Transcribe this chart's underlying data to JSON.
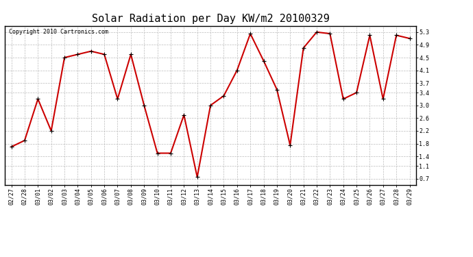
{
  "title": "Solar Radiation per Day KW/m2 20100329",
  "copyright_text": "Copyright 2010 Cartronics.com",
  "line_color": "#cc0000",
  "background_color": "#ffffff",
  "plot_bg_color": "#ffffff",
  "grid_color": "#bbbbbb",
  "dates": [
    "02/27",
    "02/28",
    "03/01",
    "03/02",
    "03/03",
    "03/04",
    "03/05",
    "03/06",
    "03/07",
    "03/08",
    "03/09",
    "03/10",
    "03/11",
    "03/12",
    "03/13",
    "03/14",
    "03/15",
    "03/16",
    "03/17",
    "03/18",
    "03/19",
    "03/20",
    "03/21",
    "03/22",
    "03/23",
    "03/24",
    "03/25",
    "03/26",
    "03/27",
    "03/28",
    "03/29"
  ],
  "values": [
    1.7,
    1.9,
    3.2,
    2.2,
    4.5,
    4.6,
    4.7,
    4.6,
    3.2,
    4.6,
    3.0,
    1.5,
    1.5,
    2.7,
    0.75,
    3.0,
    3.3,
    4.1,
    5.25,
    4.4,
    3.5,
    1.75,
    4.8,
    5.3,
    5.25,
    3.2,
    3.4,
    5.2,
    3.2,
    5.2,
    5.1
  ],
  "yticks": [
    0.7,
    1.1,
    1.4,
    1.8,
    2.2,
    2.6,
    3.0,
    3.4,
    3.7,
    4.1,
    4.5,
    4.9,
    5.3
  ],
  "ylim": [
    0.5,
    5.5
  ],
  "marker": "+",
  "marker_size": 4,
  "line_width": 1.5,
  "title_fontsize": 11,
  "tick_fontsize": 6,
  "copyright_fontsize": 6
}
